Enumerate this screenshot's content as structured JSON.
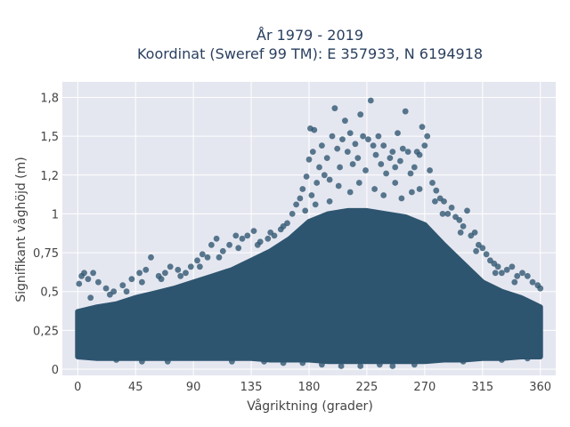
{
  "chart_data": {
    "type": "scatter",
    "title_lines": [
      "År 1979 - 2019",
      "Koordinat (Sweref 99 TM): E 357933, N 6194918"
    ],
    "xlabel": "Vågriktning (grader)",
    "ylabel": "Signifikant våghöjd (m)",
    "xlim": [
      -12,
      372
    ],
    "ylim": [
      -0.04,
      1.85
    ],
    "x_ticks": [
      {
        "value": 0,
        "label": "0"
      },
      {
        "value": 45,
        "label": "45"
      },
      {
        "value": 90,
        "label": "90"
      },
      {
        "value": 135,
        "label": "135"
      },
      {
        "value": 180,
        "label": "180"
      },
      {
        "value": 225,
        "label": "225"
      },
      {
        "value": 270,
        "label": "270"
      },
      {
        "value": 315,
        "label": "315"
      },
      {
        "value": 360,
        "label": "360"
      }
    ],
    "y_ticks": [
      {
        "value": 0,
        "label": "0"
      },
      {
        "value": 0.25,
        "label": "0,25"
      },
      {
        "value": 0.5,
        "label": "0,5"
      },
      {
        "value": 0.75,
        "label": "0,75"
      },
      {
        "value": 1,
        "label": "1"
      },
      {
        "value": 1.25,
        "label": "1,2"
      },
      {
        "value": 1.5,
        "label": "1,5"
      },
      {
        "value": 1.75,
        "label": "1,8"
      }
    ],
    "grid": true,
    "marker_color": "#2e5570",
    "plot_bg": "#e5e7f0",
    "envelope": {
      "x": [
        0,
        15,
        30,
        45,
        60,
        75,
        90,
        105,
        120,
        135,
        150,
        165,
        180,
        195,
        210,
        225,
        240,
        255,
        270,
        285,
        300,
        315,
        330,
        345,
        360
      ],
      "dense_top": [
        0.37,
        0.4,
        0.42,
        0.46,
        0.49,
        0.52,
        0.56,
        0.6,
        0.64,
        0.7,
        0.76,
        0.84,
        0.95,
        1.0,
        1.02,
        1.02,
        1.0,
        0.98,
        0.93,
        0.8,
        0.68,
        0.56,
        0.5,
        0.46,
        0.4
      ],
      "dense_bottom": [
        0.08,
        0.07,
        0.07,
        0.07,
        0.07,
        0.07,
        0.07,
        0.07,
        0.07,
        0.07,
        0.06,
        0.06,
        0.06,
        0.05,
        0.05,
        0.05,
        0.05,
        0.05,
        0.05,
        0.06,
        0.06,
        0.07,
        0.07,
        0.08,
        0.08
      ]
    },
    "points": [
      [
        1,
        0.55
      ],
      [
        3,
        0.6
      ],
      [
        5,
        0.62
      ],
      [
        8,
        0.58
      ],
      [
        12,
        0.62
      ],
      [
        16,
        0.56
      ],
      [
        22,
        0.52
      ],
      [
        28,
        0.5
      ],
      [
        35,
        0.54
      ],
      [
        42,
        0.58
      ],
      [
        48,
        0.62
      ],
      [
        53,
        0.64
      ],
      [
        57,
        0.72
      ],
      [
        63,
        0.6
      ],
      [
        68,
        0.62
      ],
      [
        72,
        0.66
      ],
      [
        78,
        0.64
      ],
      [
        84,
        0.62
      ],
      [
        88,
        0.66
      ],
      [
        93,
        0.7
      ],
      [
        97,
        0.74
      ],
      [
        101,
        0.72
      ],
      [
        104,
        0.8
      ],
      [
        108,
        0.84
      ],
      [
        113,
        0.76
      ],
      [
        118,
        0.8
      ],
      [
        123,
        0.86
      ],
      [
        128,
        0.84
      ],
      [
        132,
        0.86
      ],
      [
        137,
        0.89
      ],
      [
        142,
        0.82
      ],
      [
        148,
        0.84
      ],
      [
        153,
        0.86
      ],
      [
        158,
        0.9
      ],
      [
        163,
        0.94
      ],
      [
        167,
        1.0
      ],
      [
        170,
        1.06
      ],
      [
        173,
        1.1
      ],
      [
        175,
        1.16
      ],
      [
        178,
        1.24
      ],
      [
        180,
        1.35
      ],
      [
        181,
        1.55
      ],
      [
        183,
        1.4
      ],
      [
        184,
        1.54
      ],
      [
        186,
        1.2
      ],
      [
        188,
        1.3
      ],
      [
        190,
        1.44
      ],
      [
        192,
        1.25
      ],
      [
        194,
        1.36
      ],
      [
        196,
        1.22
      ],
      [
        198,
        1.5
      ],
      [
        200,
        1.68
      ],
      [
        202,
        1.42
      ],
      [
        204,
        1.3
      ],
      [
        206,
        1.48
      ],
      [
        208,
        1.6
      ],
      [
        210,
        1.4
      ],
      [
        212,
        1.52
      ],
      [
        214,
        1.32
      ],
      [
        216,
        1.45
      ],
      [
        218,
        1.36
      ],
      [
        220,
        1.64
      ],
      [
        222,
        1.5
      ],
      [
        224,
        1.28
      ],
      [
        226,
        1.48
      ],
      [
        228,
        1.73
      ],
      [
        230,
        1.44
      ],
      [
        232,
        1.38
      ],
      [
        234,
        1.5
      ],
      [
        236,
        1.32
      ],
      [
        238,
        1.44
      ],
      [
        240,
        1.26
      ],
      [
        243,
        1.36
      ],
      [
        245,
        1.4
      ],
      [
        247,
        1.3
      ],
      [
        249,
        1.52
      ],
      [
        251,
        1.34
      ],
      [
        253,
        1.42
      ],
      [
        255,
        1.66
      ],
      [
        257,
        1.4
      ],
      [
        259,
        1.26
      ],
      [
        262,
        1.3
      ],
      [
        264,
        1.4
      ],
      [
        266,
        1.38
      ],
      [
        268,
        1.56
      ],
      [
        270,
        1.44
      ],
      [
        272,
        1.5
      ],
      [
        274,
        1.28
      ],
      [
        276,
        1.2
      ],
      [
        279,
        1.15
      ],
      [
        282,
        1.1
      ],
      [
        285,
        1.08
      ],
      [
        288,
        1.0
      ],
      [
        291,
        1.04
      ],
      [
        294,
        0.98
      ],
      [
        297,
        0.96
      ],
      [
        300,
        0.92
      ],
      [
        303,
        1.02
      ],
      [
        306,
        0.86
      ],
      [
        309,
        0.88
      ],
      [
        312,
        0.8
      ],
      [
        315,
        0.78
      ],
      [
        318,
        0.74
      ],
      [
        321,
        0.7
      ],
      [
        324,
        0.68
      ],
      [
        327,
        0.66
      ],
      [
        330,
        0.62
      ],
      [
        334,
        0.64
      ],
      [
        338,
        0.66
      ],
      [
        342,
        0.6
      ],
      [
        346,
        0.62
      ],
      [
        350,
        0.6
      ],
      [
        354,
        0.56
      ],
      [
        358,
        0.54
      ],
      [
        360,
        0.52
      ],
      [
        182,
        1.12
      ],
      [
        196,
        1.08
      ],
      [
        212,
        1.14
      ],
      [
        238,
        1.12
      ],
      [
        252,
        1.1
      ],
      [
        266,
        1.16
      ],
      [
        185,
        1.06
      ],
      [
        203,
        1.18
      ],
      [
        219,
        1.2
      ],
      [
        231,
        1.16
      ],
      [
        247,
        1.2
      ],
      [
        260,
        1.14
      ],
      [
        278,
        1.08
      ],
      [
        177,
        1.02
      ],
      [
        160,
        0.92
      ],
      [
        150,
        0.88
      ],
      [
        140,
        0.8
      ],
      [
        125,
        0.78
      ],
      [
        110,
        0.72
      ],
      [
        95,
        0.66
      ],
      [
        80,
        0.6
      ],
      [
        65,
        0.58
      ],
      [
        50,
        0.56
      ],
      [
        38,
        0.5
      ],
      [
        25,
        0.48
      ],
      [
        10,
        0.46
      ],
      [
        340,
        0.56
      ],
      [
        325,
        0.62
      ],
      [
        310,
        0.76
      ],
      [
        298,
        0.88
      ],
      [
        284,
        1.0
      ],
      [
        205,
        0.02
      ],
      [
        220,
        0.02
      ],
      [
        235,
        0.03
      ],
      [
        245,
        0.02
      ],
      [
        262,
        0.03
      ],
      [
        190,
        0.03
      ],
      [
        175,
        0.04
      ],
      [
        160,
        0.04
      ],
      [
        145,
        0.05
      ],
      [
        50,
        0.05
      ],
      [
        30,
        0.06
      ],
      [
        70,
        0.05
      ],
      [
        300,
        0.05
      ],
      [
        330,
        0.06
      ],
      [
        350,
        0.07
      ],
      [
        120,
        0.05
      ]
    ]
  }
}
